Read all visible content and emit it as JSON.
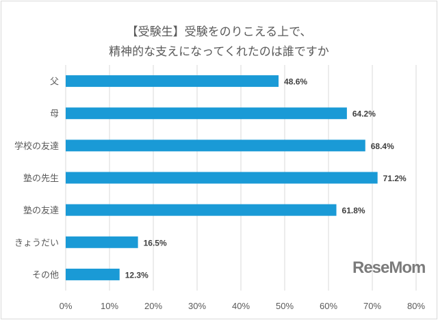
{
  "chart_data": {
    "type": "bar",
    "orientation": "horizontal",
    "title_lines": [
      "【受験生】受験をのりこえる上で、",
      "精神的な支えになってくれたのは誰ですか"
    ],
    "categories": [
      "父",
      "母",
      "学校の友達",
      "塾の先生",
      "塾の友達",
      "きょうだい",
      "その他"
    ],
    "values": [
      48.6,
      64.2,
      68.4,
      71.2,
      61.8,
      16.5,
      12.3
    ],
    "data_labels": [
      "48.6%",
      "64.2%",
      "68.4%",
      "71.2%",
      "61.8%",
      "16.5%",
      "12.3%"
    ],
    "xlim": [
      0,
      80
    ],
    "xticks": [
      "0%",
      "10%",
      "20%",
      "30%",
      "40%",
      "50%",
      "60%",
      "70%",
      "80%"
    ],
    "grid": true,
    "bar_color": "#1a9ad6"
  },
  "watermark": "ReseMom"
}
